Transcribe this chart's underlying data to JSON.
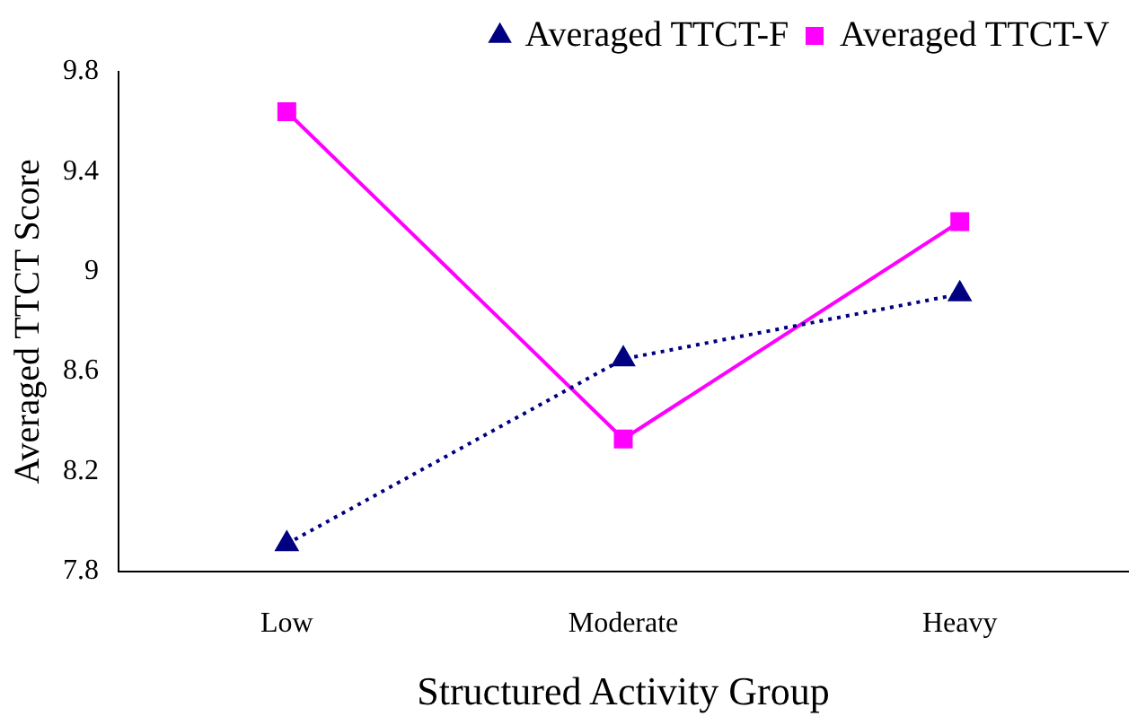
{
  "chart_data": {
    "type": "line",
    "xlabel": "Structured Activity Group",
    "ylabel": "Averaged TTCT Score",
    "categories": [
      "Low",
      "Moderate",
      "Heavy"
    ],
    "series": [
      {
        "name": "Averaged TTCT-F",
        "color": "#000080",
        "values": [
          7.91,
          8.65,
          8.91
        ],
        "marker": "triangle",
        "line_style": "dotted"
      },
      {
        "name": "Averaged TTCT-V",
        "color": "#ff00ff",
        "values": [
          9.64,
          8.33,
          9.2
        ],
        "marker": "square",
        "line_style": "solid"
      }
    ],
    "ylim": [
      7.8,
      9.8
    ],
    "yticks": [
      7.8,
      8.2,
      8.6,
      9,
      9.4,
      9.8
    ],
    "grid": false,
    "legend": "top right"
  }
}
